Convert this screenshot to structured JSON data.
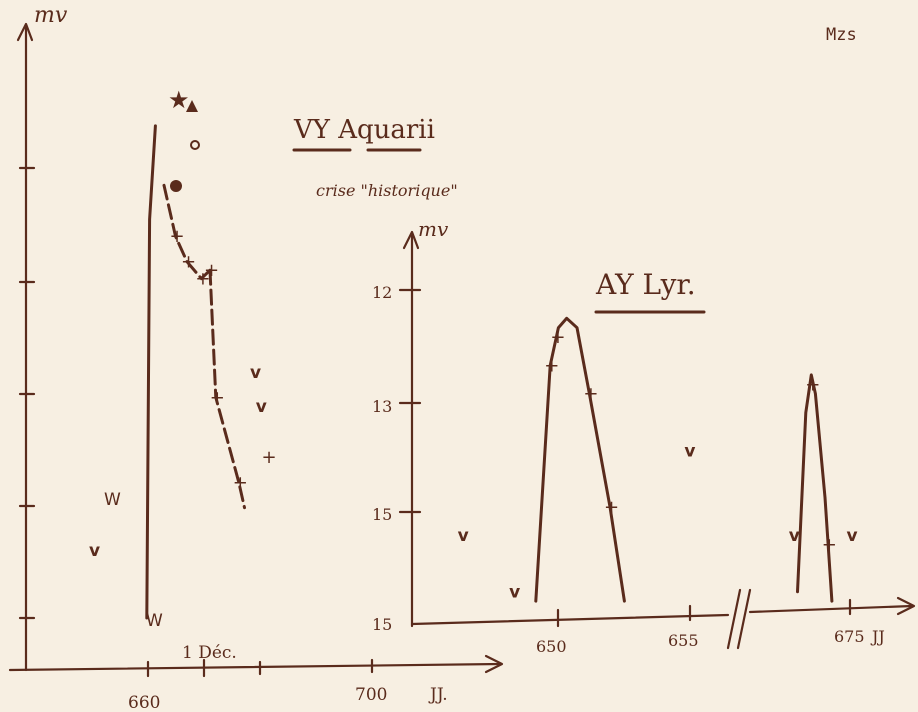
{
  "header": {
    "corner_text": "Mzs"
  },
  "colors": {
    "ink": "#5a2b1c",
    "paper": "#f7efe2"
  },
  "chart_data": [
    {
      "type": "line",
      "title": "VY Aquarii",
      "subtitle": "crise \"historique\"",
      "ylabel": "mv",
      "xlabel": "JJ.",
      "x_ticks": [
        "660",
        "700"
      ],
      "annotation": "1 Déc.",
      "xlim": [
        640,
        720
      ],
      "ylim": [
        16.5,
        10.3
      ],
      "series": [
        {
          "points": [
            [
              661.0,
              16.5
            ],
            [
              661.5,
              11.8
            ],
            [
              662.5,
              10.7
            ]
          ]
        },
        {
          "points": [
            [
              664.0,
              11.4
            ],
            [
              666.0,
              12.0
            ],
            [
              668.0,
              12.3
            ],
            [
              670.5,
              12.5
            ],
            [
              672.0,
              12.4
            ]
          ]
        },
        {
          "points": [
            [
              672.0,
              12.4
            ],
            [
              673.0,
              13.9
            ],
            [
              677.0,
              14.9
            ],
            [
              678.0,
              15.2
            ]
          ]
        }
      ],
      "observations_plus": [
        [
          666.0,
          12.0
        ],
        [
          668.0,
          12.3
        ],
        [
          670.5,
          12.5
        ],
        [
          672.0,
          12.4
        ],
        [
          673.0,
          13.9
        ],
        [
          677.0,
          14.9
        ],
        [
          682.0,
          14.6
        ]
      ],
      "upper_limits": [
        [
          680.0,
          13.6
        ],
        [
          681.0,
          14.0
        ],
        [
          652.0,
          15.7
        ]
      ]
    },
    {
      "type": "line",
      "title": "AY Lyr.",
      "ylabel": "mv",
      "xlabel": "JJ",
      "x_ticks": [
        "650",
        "655",
        "675"
      ],
      "y_ticks": [
        "12",
        "13",
        "15",
        "15"
      ],
      "ylim": [
        15.2,
        11.7
      ],
      "series": [
        {
          "points": [
            [
              646.0,
              15.0
            ],
            [
              646.7,
              12.5
            ],
            [
              647.1,
              12.1
            ],
            [
              647.5,
              12.0
            ],
            [
              648.0,
              12.1
            ],
            [
              648.6,
              12.8
            ],
            [
              649.6,
              14.0
            ],
            [
              650.3,
              15.0
            ]
          ]
        },
        {
          "points": [
            [
              670.0,
              14.9
            ],
            [
              670.6,
              13.0
            ],
            [
              671.0,
              12.6
            ],
            [
              671.3,
              12.8
            ],
            [
              672.0,
              13.9
            ],
            [
              672.5,
              15.0
            ]
          ]
        }
      ],
      "observations_plus": [
        [
          646.7,
          12.5
        ],
        [
          647.0,
          12.2
        ],
        [
          648.6,
          12.8
        ],
        [
          649.6,
          14.0
        ],
        [
          671.0,
          12.7
        ],
        [
          672.2,
          14.4
        ]
      ],
      "upper_limits": [
        [
          645.0,
          14.9
        ],
        [
          642.5,
          14.3
        ],
        [
          653.5,
          13.4
        ],
        [
          669.8,
          14.3
        ],
        [
          674.0,
          14.3
        ]
      ]
    }
  ]
}
